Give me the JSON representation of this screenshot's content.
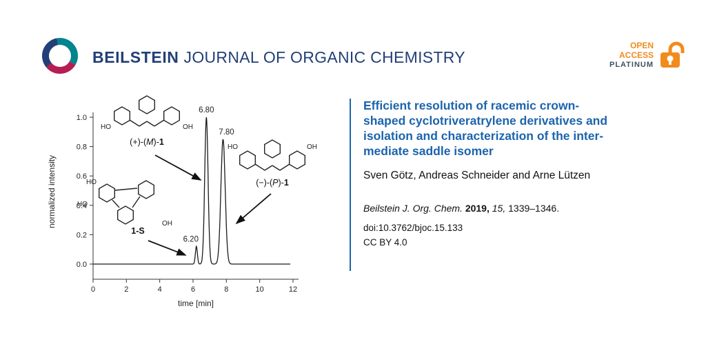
{
  "colors": {
    "title_blue": "#1c64ad",
    "brand_navy": "#223f77",
    "accent_orange": "#f28b1d",
    "platinum_gray": "#3e4f63"
  },
  "header": {
    "brand_bold": "BEILSTEIN",
    "brand_rest": "JOURNAL OF ORGANIC CHEMISTRY",
    "open_access": {
      "line1": "OPEN",
      "line2": "ACCESS",
      "line3": "PLATINUM"
    }
  },
  "chart_data": {
    "type": "line",
    "title": "",
    "xlabel": "time [min]",
    "ylabel": "normalized intensity",
    "xlim": [
      0,
      12.4
    ],
    "ylim": [
      -0.1,
      1.08
    ],
    "x_ticks": [
      0,
      2,
      4,
      6,
      8,
      10,
      12
    ],
    "y_ticks": [
      0.0,
      0.2,
      0.4,
      0.6,
      0.8,
      1.0
    ],
    "grid": false,
    "legend": "none",
    "peaks": [
      {
        "time": 6.2,
        "height": 0.12,
        "sigma": 0.06,
        "label": "6.20"
      },
      {
        "time": 6.8,
        "height": 1.0,
        "sigma": 0.1,
        "label": "6.80"
      },
      {
        "time": 7.8,
        "height": 0.85,
        "sigma": 0.13,
        "label": "7.80"
      }
    ]
  },
  "structures": {
    "crown_m": {
      "caption_pre": "(+)-(",
      "caption_stereo": "M",
      "caption_mid": ")-",
      "caption_compound": "1",
      "label_left": "HO",
      "label_right": "OH"
    },
    "crown_p": {
      "caption_pre": "(−)-(",
      "caption_stereo": "P",
      "caption_mid": ")-",
      "caption_compound": "1",
      "label_left": "HO",
      "label_right": "OH"
    },
    "saddle": {
      "caption": "1-S",
      "label_top": "HO",
      "label_left": "HO",
      "label_right": "OH"
    }
  },
  "article": {
    "title_lines": [
      "Efficient resolution of racemic crown-",
      "shaped cyclotriveratrylene derivatives and",
      "isolation and characterization of the inter-",
      "mediate saddle isomer"
    ],
    "authors": "Sven Götz, Andreas Schneider and Arne Lützen",
    "citation": {
      "journal": "Beilstein J. Org. Chem.",
      "year": "2019,",
      "volume": "15,",
      "pages": "1339–1346."
    },
    "doi": "doi:10.3762/bjoc.15.133",
    "license": "CC BY 4.0"
  }
}
